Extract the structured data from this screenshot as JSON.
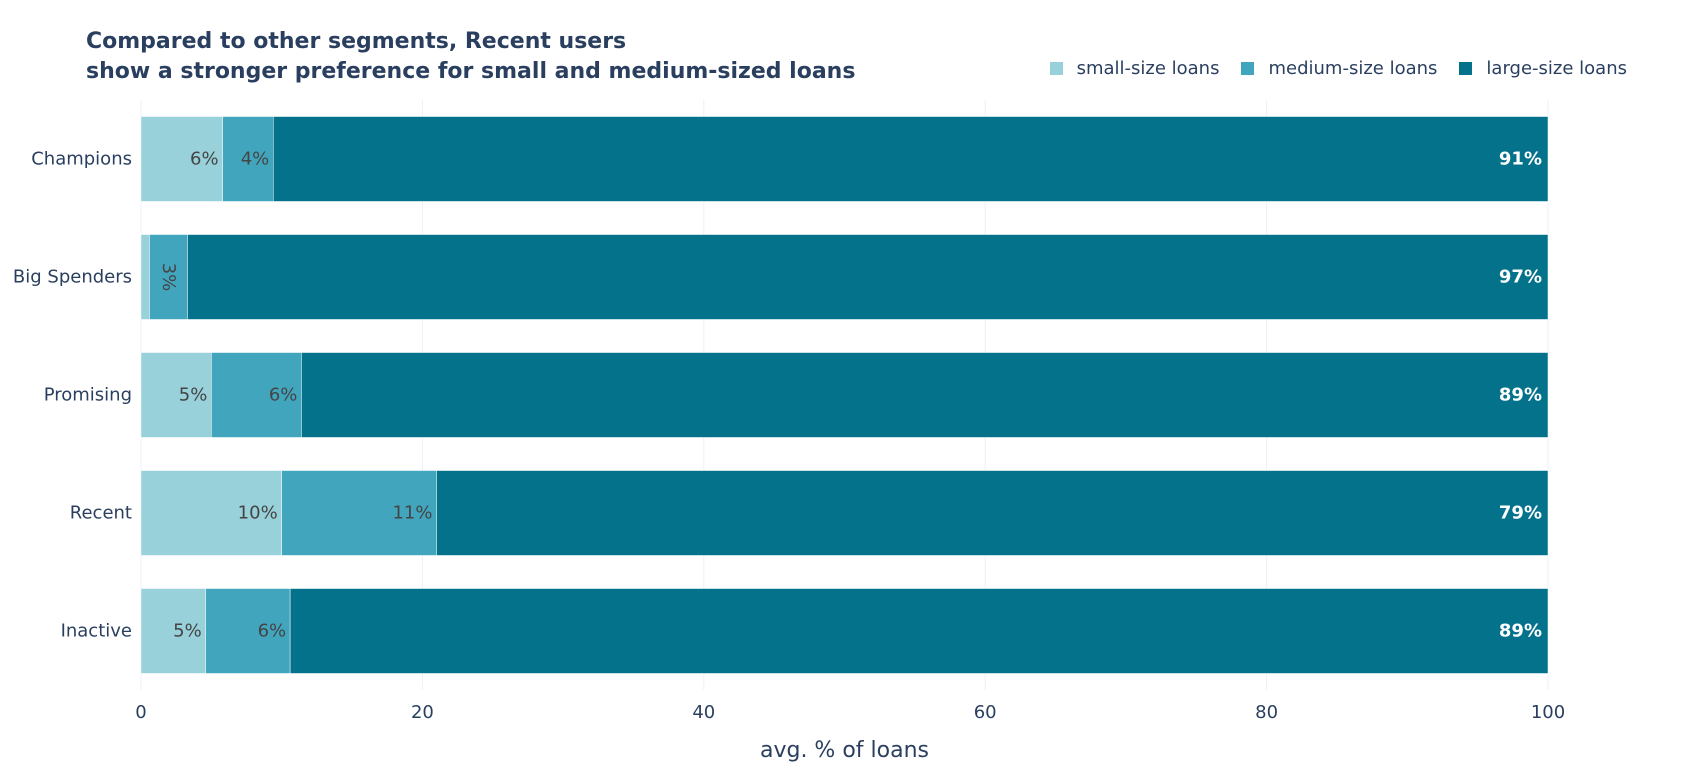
{
  "chart_data": {
    "type": "bar",
    "orientation": "horizontal",
    "barmode": "stack",
    "title_lines": [
      "Compared to other segments, Recent users",
      "show a stronger preference for small and medium-sized loans"
    ],
    "xlabel": "avg. % of loans",
    "ylabel": "",
    "xlim": [
      0,
      100
    ],
    "x_ticks": [
      0,
      20,
      40,
      60,
      80,
      100
    ],
    "x_tick_labels": [
      "0",
      "20",
      "40",
      "60",
      "80",
      "100"
    ],
    "grid": true,
    "legend_position": "top-right",
    "categories": [
      "Champions",
      "Big Spenders",
      "Promising",
      "Recent",
      "Inactive"
    ],
    "series": [
      {
        "name": "small-size loans",
        "color": "#98d1da",
        "values": [
          5.8,
          0.6,
          5.0,
          10.0,
          4.6
        ],
        "labels": [
          "6%",
          "",
          "5%",
          "10%",
          "5%"
        ]
      },
      {
        "name": "medium-size loans",
        "color": "#41a6bd",
        "values": [
          3.6,
          2.7,
          6.4,
          11.0,
          6.0
        ],
        "labels": [
          "4%",
          "3%",
          "6%",
          "11%",
          "6%"
        ]
      },
      {
        "name": "large-size loans",
        "color": "#04728a",
        "values": [
          90.6,
          96.7,
          88.6,
          79.0,
          89.4
        ],
        "labels": [
          "91%",
          "97%",
          "89%",
          "79%",
          "89%"
        ]
      }
    ]
  }
}
